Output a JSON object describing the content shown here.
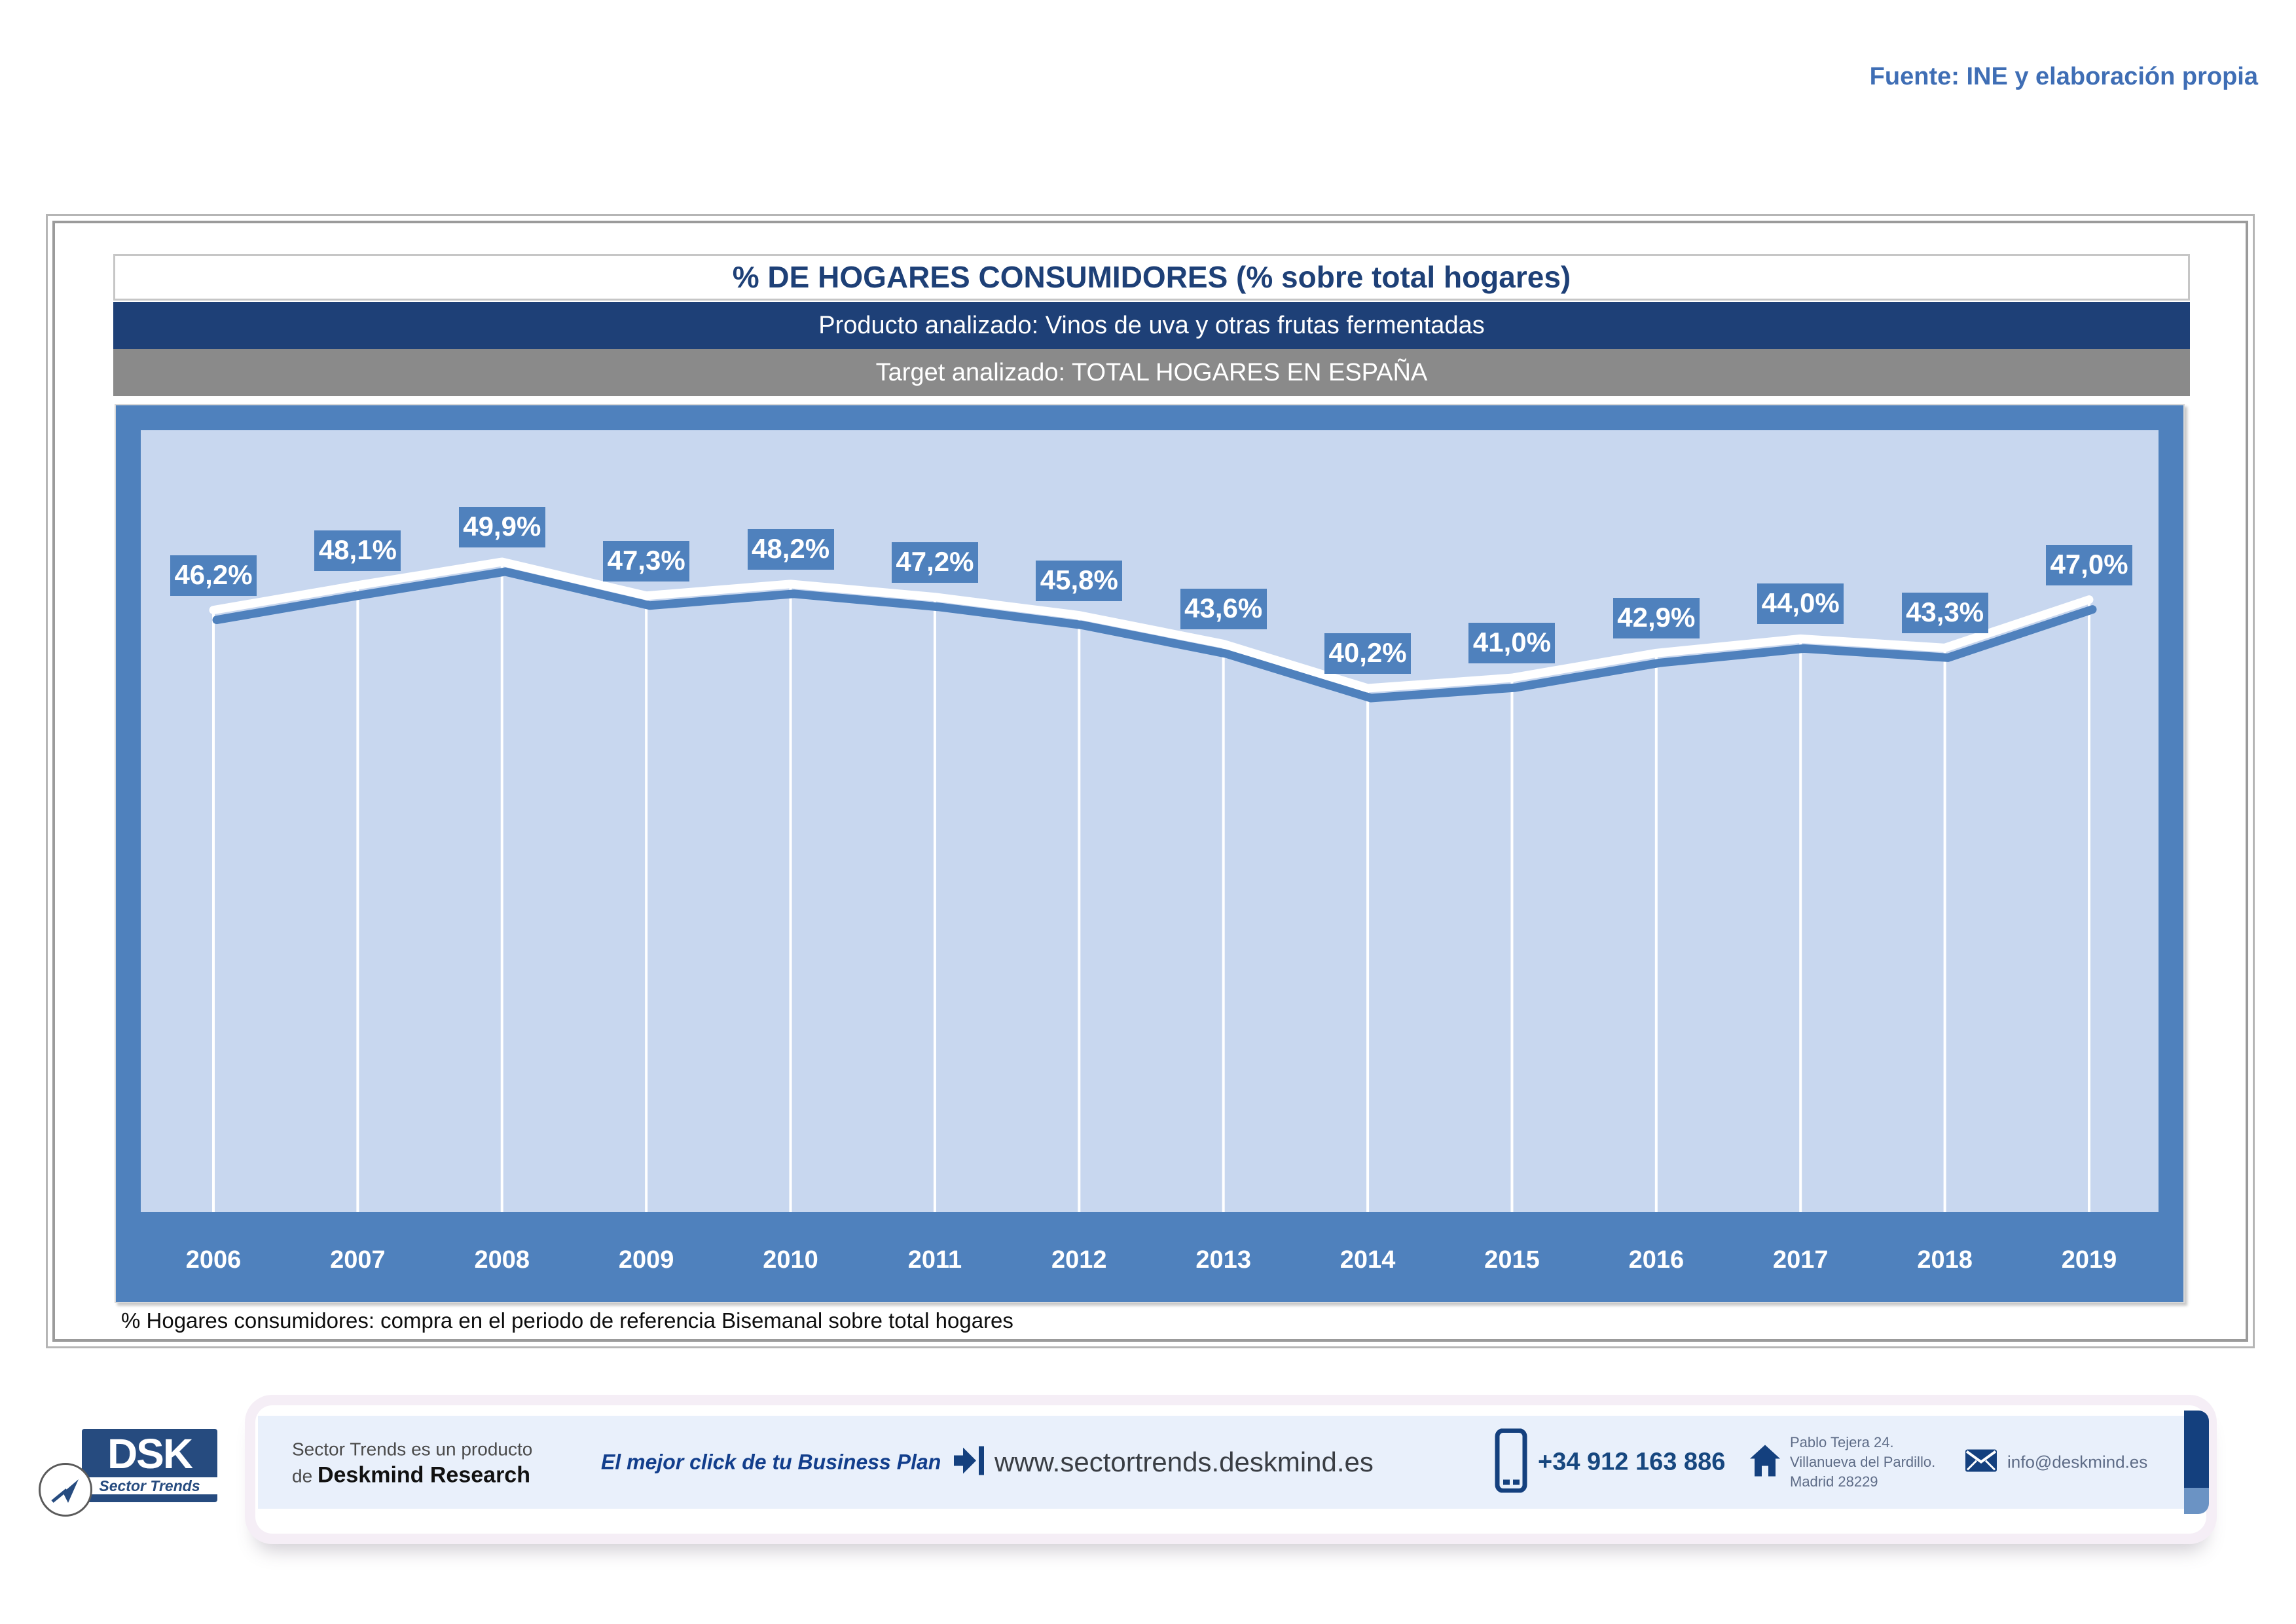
{
  "fuente": "Fuente: INE y elaboración propia",
  "header": {
    "title": "% DE HOGARES CONSUMIDORES (% sobre total hogares)",
    "producto": "Producto analizado: Vinos de uva y otras frutas fermentadas",
    "target": "Target analizado: TOTAL HOGARES EN ESPAÑA"
  },
  "chart_data": {
    "type": "line",
    "title": "% DE HOGARES CONSUMIDORES (% sobre total hogares)",
    "categories": [
      "2006",
      "2007",
      "2008",
      "2009",
      "2010",
      "2011",
      "2012",
      "2013",
      "2014",
      "2015",
      "2016",
      "2017",
      "2018",
      "2019"
    ],
    "values": [
      46.2,
      48.1,
      49.9,
      47.3,
      48.2,
      47.2,
      45.8,
      43.6,
      40.2,
      41.0,
      42.9,
      44.0,
      43.3,
      47.0
    ],
    "labels": [
      "46,2%",
      "48,1%",
      "49,9%",
      "47,3%",
      "48,2%",
      "47,2%",
      "45,8%",
      "43,6%",
      "40,2%",
      "41,0%",
      "42,9%",
      "44,0%",
      "43,3%",
      "47,0%"
    ],
    "xlabel": "",
    "ylabel": "",
    "ylim": [
      0,
      60
    ],
    "grid": false,
    "legend": "none",
    "colors": {
      "line": "#FFFFFF",
      "line_shadow": "#4F81BD",
      "drop_line": "#FFFFFF",
      "label_bg": "#4F81BD",
      "label_text": "#FFFFFF",
      "plot_bg": "#C8D7EF",
      "frame_bg": "#4F81BD",
      "header_bg": "#1E4077",
      "target_bg": "#8A8A8A"
    }
  },
  "footnote": "% Hogares consumidores: compra en el periodo de referencia Bisemanal sobre total hogares",
  "footer": {
    "logo": {
      "dsk": "DSK",
      "sector_trends": "Sector Trends"
    },
    "product_line1": "Sector Trends es un producto",
    "product_de": "de ",
    "product_brand": "Deskmind Research",
    "tagline": "El mejor click de tu Business Plan",
    "website": "www.sectortrends.deskmind.es",
    "phone": "+34 912 163 886",
    "address": [
      "Pablo Tejera 24.",
      "Villanueva del Pardillo.",
      "Madrid 28229"
    ],
    "email": "info@deskmind.es",
    "icons": {
      "website_icon": "arrow-right-bracket-icon",
      "phone_icon": "mobile-phone-icon",
      "address_icon": "house-icon",
      "email_icon": "envelope-icon",
      "logo_icon": "paper-plane-arrow-icon"
    }
  }
}
